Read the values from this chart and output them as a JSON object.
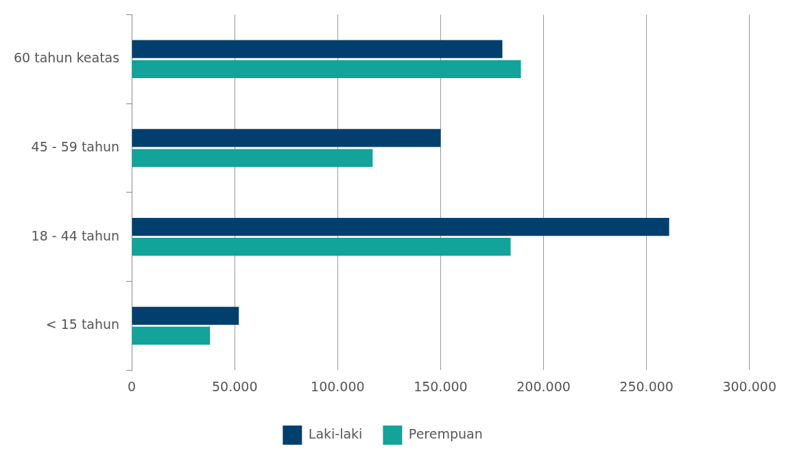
{
  "chart_data": {
    "type": "bar",
    "orientation": "horizontal",
    "categories": [
      "60 tahun keatas",
      "45 - 59 tahun",
      "18 - 44 tahun",
      "< 15 tahun"
    ],
    "series": [
      {
        "name": "Laki-laki",
        "color": "#013f6f",
        "values": [
          180000,
          150000,
          261000,
          52000
        ]
      },
      {
        "name": "Perempuan",
        "color": "#12a39a",
        "values": [
          189000,
          117000,
          184000,
          38000
        ]
      }
    ],
    "xlim": [
      0,
      300000
    ],
    "xticks": [
      0,
      {
        "value": 50000,
        "label": "50.000"
      },
      {
        "value": 100000,
        "label": "100.000"
      },
      {
        "value": 150000,
        "label": "150.000"
      },
      {
        "value": 200000,
        "label": "200.000"
      },
      {
        "value": 250000,
        "label": "250.000"
      },
      {
        "value": 300000,
        "label": "300.000"
      }
    ],
    "grid": "x",
    "legend": "bottom"
  }
}
